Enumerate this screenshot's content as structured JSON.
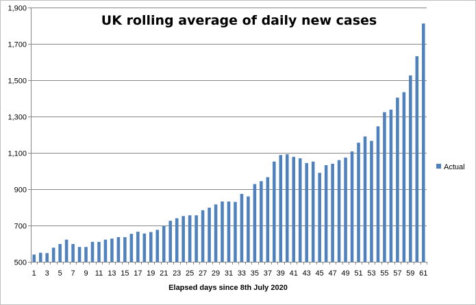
{
  "chart_data": {
    "type": "bar",
    "title": "UK rolling average of  daily new cases",
    "xlabel": "Elapsed days since 8th July 2020",
    "ylabel": "",
    "ylim": [
      500,
      1900
    ],
    "yticks": [
      500,
      700,
      900,
      1100,
      1300,
      1500,
      1700,
      1900
    ],
    "ytick_labels": [
      "500",
      "700",
      "900",
      "1,100",
      "1,300",
      "1,500",
      "1,700",
      "1,900"
    ],
    "x": [
      1,
      2,
      3,
      4,
      5,
      6,
      7,
      8,
      9,
      10,
      11,
      12,
      13,
      14,
      15,
      16,
      17,
      18,
      19,
      20,
      21,
      22,
      23,
      24,
      25,
      26,
      27,
      28,
      29,
      30,
      31,
      32,
      33,
      34,
      35,
      36,
      37,
      38,
      39,
      40,
      41,
      42,
      43,
      44,
      45,
      46,
      47,
      48,
      49,
      50,
      51,
      52,
      53,
      54,
      55,
      56,
      57,
      58,
      59,
      60,
      61
    ],
    "xtick_labels": [
      "1",
      "3",
      "5",
      "7",
      "9",
      "11",
      "13",
      "15",
      "17",
      "19",
      "21",
      "23",
      "25",
      "27",
      "29",
      "31",
      "33",
      "35",
      "37",
      "39",
      "41",
      "43",
      "45",
      "47",
      "49",
      "51",
      "53",
      "55",
      "57",
      "59",
      "61"
    ],
    "grid": true,
    "legend": "right",
    "bar_color": "#4f81bd",
    "series": [
      {
        "name": "Actual",
        "values": [
          540,
          550,
          548,
          578,
          598,
          622,
          598,
          582,
          582,
          610,
          610,
          622,
          628,
          636,
          636,
          654,
          666,
          656,
          664,
          676,
          698,
          726,
          740,
          752,
          756,
          756,
          784,
          798,
          816,
          832,
          832,
          830,
          874,
          860,
          928,
          944,
          966,
          1052,
          1088,
          1092,
          1078,
          1070,
          1044,
          1052,
          990,
          1032,
          1040,
          1060,
          1074,
          1108,
          1156,
          1190,
          1166,
          1246,
          1324,
          1338,
          1404,
          1434,
          1526,
          1632,
          1812
        ]
      }
    ]
  }
}
